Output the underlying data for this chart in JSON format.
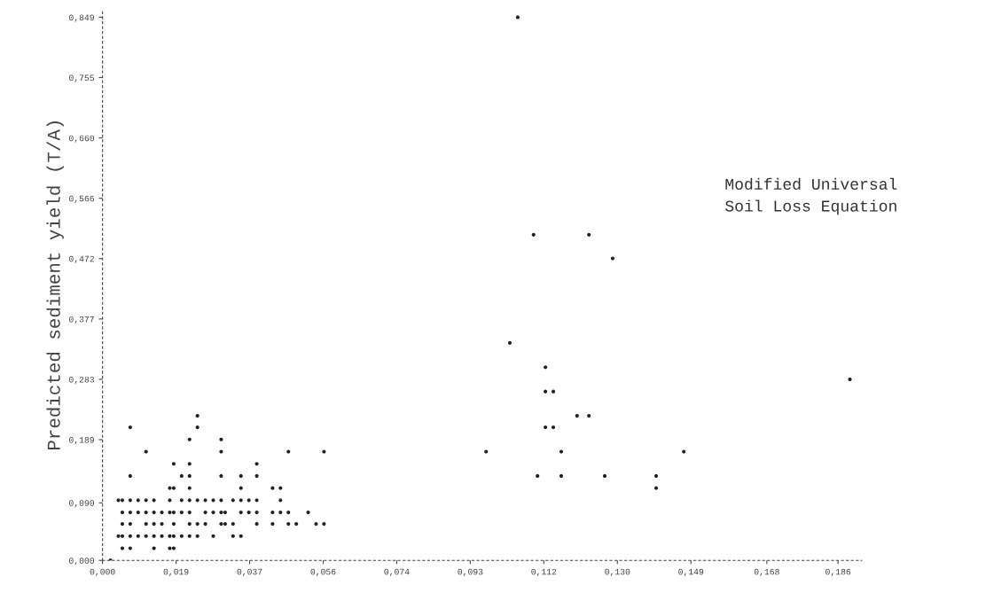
{
  "chart_data": {
    "type": "scatter",
    "ylabel": "Predicted sediment yield (T/A)",
    "annotations": [
      "Modified Universal\nSoil Loss Equation"
    ],
    "xlim": [
      0,
      0.192
    ],
    "ylim": [
      0,
      0.862
    ],
    "xticks": [
      {
        "value": 0,
        "label": "0,000"
      },
      {
        "value": 0.0186,
        "label": "0,019"
      },
      {
        "value": 0.0372,
        "label": "0,037"
      },
      {
        "value": 0.0558,
        "label": "0,056"
      },
      {
        "value": 0.0744,
        "label": "0,074"
      },
      {
        "value": 0.093,
        "label": "0,093"
      },
      {
        "value": 0.1116,
        "label": "0,112"
      },
      {
        "value": 0.1302,
        "label": "0,130"
      },
      {
        "value": 0.1488,
        "label": "0,149"
      },
      {
        "value": 0.168,
        "label": "0,168"
      },
      {
        "value": 0.186,
        "label": "0,186"
      }
    ],
    "yticks": [
      {
        "value": 0,
        "label": "0,000"
      },
      {
        "value": 0.09,
        "label": "0,090"
      },
      {
        "value": 0.1887,
        "label": "0,189"
      },
      {
        "value": 0.283,
        "label": "0,283"
      },
      {
        "value": 0.3773,
        "label": "0,377"
      },
      {
        "value": 0.4717,
        "label": "0,472"
      },
      {
        "value": 0.566,
        "label": "0,566"
      },
      {
        "value": 0.6603,
        "label": "0,660"
      },
      {
        "value": 0.7547,
        "label": "0,755"
      },
      {
        "value": 0.849,
        "label": "0,849"
      }
    ],
    "grid": false,
    "legend": false,
    "marker": "circle",
    "series": [
      {
        "color": "#222222",
        "x": [
          0.002,
          0.005,
          0.007,
          0.013,
          0.017,
          0.018,
          0.004,
          0.005,
          0.007,
          0.009,
          0.011,
          0.013,
          0.015,
          0.017,
          0.018,
          0.02,
          0.022,
          0.024,
          0.028,
          0.033,
          0.035,
          0.005,
          0.007,
          0.011,
          0.013,
          0.015,
          0.018,
          0.022,
          0.024,
          0.026,
          0.03,
          0.031,
          0.033,
          0.039,
          0.043,
          0.047,
          0.049,
          0.054,
          0.056,
          0.005,
          0.007,
          0.009,
          0.011,
          0.013,
          0.015,
          0.017,
          0.018,
          0.02,
          0.022,
          0.026,
          0.028,
          0.03,
          0.031,
          0.035,
          0.037,
          0.039,
          0.043,
          0.045,
          0.047,
          0.052,
          0.004,
          0.005,
          0.007,
          0.009,
          0.011,
          0.013,
          0.017,
          0.02,
          0.022,
          0.024,
          0.026,
          0.028,
          0.03,
          0.033,
          0.035,
          0.037,
          0.039,
          0.045,
          0.017,
          0.018,
          0.022,
          0.035,
          0.043,
          0.045,
          0.14,
          0.007,
          0.02,
          0.022,
          0.03,
          0.035,
          0.039,
          0.11,
          0.116,
          0.127,
          0.14,
          0.018,
          0.022,
          0.039,
          0.011,
          0.03,
          0.047,
          0.056,
          0.097,
          0.116,
          0.147,
          0.022,
          0.03,
          0.007,
          0.024,
          0.112,
          0.114,
          0.024,
          0.12,
          0.123,
          0.112,
          0.114,
          0.189,
          0.112,
          0.103,
          0.129,
          0.109,
          0.123,
          0.105
        ],
        "values": [
          0.0,
          0.019,
          0.019,
          0.019,
          0.019,
          0.019,
          0.038,
          0.038,
          0.038,
          0.038,
          0.038,
          0.038,
          0.038,
          0.038,
          0.038,
          0.038,
          0.038,
          0.038,
          0.038,
          0.038,
          0.038,
          0.057,
          0.057,
          0.057,
          0.057,
          0.057,
          0.057,
          0.057,
          0.057,
          0.057,
          0.057,
          0.057,
          0.057,
          0.057,
          0.057,
          0.057,
          0.057,
          0.057,
          0.057,
          0.075,
          0.075,
          0.075,
          0.075,
          0.075,
          0.075,
          0.075,
          0.075,
          0.075,
          0.075,
          0.075,
          0.075,
          0.075,
          0.075,
          0.075,
          0.075,
          0.075,
          0.075,
          0.075,
          0.075,
          0.075,
          0.094,
          0.094,
          0.094,
          0.094,
          0.094,
          0.094,
          0.094,
          0.094,
          0.094,
          0.094,
          0.094,
          0.094,
          0.094,
          0.094,
          0.094,
          0.094,
          0.094,
          0.094,
          0.113,
          0.113,
          0.113,
          0.113,
          0.113,
          0.113,
          0.113,
          0.132,
          0.132,
          0.132,
          0.132,
          0.132,
          0.132,
          0.132,
          0.132,
          0.132,
          0.132,
          0.151,
          0.151,
          0.151,
          0.17,
          0.17,
          0.17,
          0.17,
          0.17,
          0.17,
          0.17,
          0.189,
          0.189,
          0.208,
          0.208,
          0.208,
          0.208,
          0.226,
          0.226,
          0.226,
          0.264,
          0.264,
          0.283,
          0.302,
          0.34,
          0.472,
          0.509,
          0.509,
          0.849
        ]
      }
    ]
  }
}
